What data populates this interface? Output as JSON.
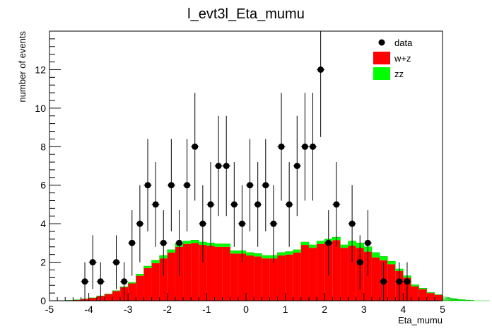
{
  "chart_data": {
    "type": "histogram",
    "title": "l_evt3l_Eta_mumu",
    "xlabel": "Eta_mumu",
    "ylabel": "number of events",
    "xlim": [
      -5,
      5
    ],
    "ylim": [
      0,
      14
    ],
    "x_ticks": [
      "-5",
      "-4",
      "-3",
      "-2",
      "-1",
      "0",
      "1",
      "2",
      "3",
      "4",
      "5"
    ],
    "y_ticks": [
      "0",
      "2",
      "4",
      "6",
      "8",
      "10",
      "12"
    ],
    "y_tick_values": [
      0,
      2,
      4,
      6,
      8,
      10,
      12
    ],
    "bin_width": 0.2,
    "bin_edges_start": -5.0,
    "legend_position": "top-right",
    "legend": [
      {
        "name": "data",
        "kind": "marker"
      },
      {
        "name": "w+z",
        "kind": "fill",
        "color": "#ff0000"
      },
      {
        "name": "zz",
        "kind": "fill",
        "color": "#00ff00"
      }
    ],
    "stack": [
      {
        "name": "w+z",
        "color": "#ff0000",
        "values": [
          0,
          0,
          0.02,
          0.05,
          0.1,
          0.15,
          0.25,
          0.35,
          0.5,
          0.7,
          0.9,
          1.3,
          1.7,
          1.95,
          2.2,
          2.5,
          2.8,
          2.95,
          3.0,
          2.9,
          2.85,
          2.8,
          2.8,
          2.45,
          2.45,
          2.35,
          2.3,
          2.2,
          2.2,
          2.35,
          2.4,
          2.5,
          2.9,
          2.75,
          2.95,
          3.05,
          3.15,
          2.75,
          2.85,
          2.75,
          2.55,
          2.25,
          2.1,
          1.9,
          1.55,
          1.2,
          0.75,
          0.6,
          0.4,
          0.3,
          0.22,
          0.15,
          0.1,
          0.05,
          0.02,
          0,
          0
        ]
      },
      {
        "name": "zz",
        "color": "#00ff00",
        "values": [
          0,
          0,
          0,
          0,
          0,
          0,
          0,
          0,
          0.02,
          0.03,
          0.05,
          0.08,
          0.1,
          0.15,
          0.15,
          0.15,
          0.15,
          0.15,
          0.15,
          0.15,
          0.15,
          0.15,
          0.15,
          0.15,
          0.15,
          0.15,
          0.15,
          0.15,
          0.15,
          0.15,
          0.15,
          0.15,
          0.15,
          0.15,
          0.15,
          0.15,
          0.15,
          0.15,
          0.25,
          0.25,
          0.25,
          0.25,
          0.2,
          0.15,
          0.1,
          0.1,
          0.08,
          0.05,
          0.03,
          0.02,
          0,
          0,
          0,
          0,
          0,
          0,
          0
        ]
      }
    ],
    "data_points": [
      {
        "x": -4.1,
        "y": 1,
        "err": 1
      },
      {
        "x": -3.9,
        "y": 2,
        "err": 1.4
      },
      {
        "x": -3.7,
        "y": 1,
        "err": 1
      },
      {
        "x": -3.3,
        "y": 2,
        "err": 1.4
      },
      {
        "x": -3.1,
        "y": 1,
        "err": 1
      },
      {
        "x": -2.9,
        "y": 3,
        "err": 1.7
      },
      {
        "x": -2.7,
        "y": 4,
        "err": 2
      },
      {
        "x": -2.5,
        "y": 6,
        "err": 2.4
      },
      {
        "x": -2.3,
        "y": 5,
        "err": 2.2
      },
      {
        "x": -2.1,
        "y": 3,
        "err": 1.7
      },
      {
        "x": -1.9,
        "y": 6,
        "err": 2.4
      },
      {
        "x": -1.7,
        "y": 3,
        "err": 1.7
      },
      {
        "x": -1.5,
        "y": 6,
        "err": 2.4
      },
      {
        "x": -1.3,
        "y": 8,
        "err": 2.8
      },
      {
        "x": -1.1,
        "y": 4,
        "err": 2
      },
      {
        "x": -0.9,
        "y": 5,
        "err": 2.2
      },
      {
        "x": -0.7,
        "y": 7,
        "err": 2.6
      },
      {
        "x": -0.5,
        "y": 7,
        "err": 2.6
      },
      {
        "x": -0.3,
        "y": 5,
        "err": 2.2
      },
      {
        "x": -0.1,
        "y": 4,
        "err": 2
      },
      {
        "x": 0.1,
        "y": 6,
        "err": 2.4
      },
      {
        "x": 0.3,
        "y": 5,
        "err": 2.2
      },
      {
        "x": 0.5,
        "y": 6,
        "err": 2.4
      },
      {
        "x": 0.7,
        "y": 4,
        "err": 2
      },
      {
        "x": 0.9,
        "y": 8,
        "err": 2.8
      },
      {
        "x": 1.1,
        "y": 5,
        "err": 2.2
      },
      {
        "x": 1.3,
        "y": 7,
        "err": 2.6
      },
      {
        "x": 1.5,
        "y": 8,
        "err": 2.8
      },
      {
        "x": 1.7,
        "y": 8,
        "err": 2.8
      },
      {
        "x": 1.9,
        "y": 12,
        "err": 3.5
      },
      {
        "x": 2.1,
        "y": 3,
        "err": 1.7
      },
      {
        "x": 2.3,
        "y": 5,
        "err": 2.2
      },
      {
        "x": 2.7,
        "y": 4,
        "err": 2
      },
      {
        "x": 2.9,
        "y": 2,
        "err": 1.4
      },
      {
        "x": 3.1,
        "y": 3,
        "err": 1.7
      },
      {
        "x": 3.5,
        "y": 1,
        "err": 1
      },
      {
        "x": 3.9,
        "y": 1,
        "err": 1
      },
      {
        "x": 4.1,
        "y": 1,
        "err": 1
      }
    ]
  }
}
